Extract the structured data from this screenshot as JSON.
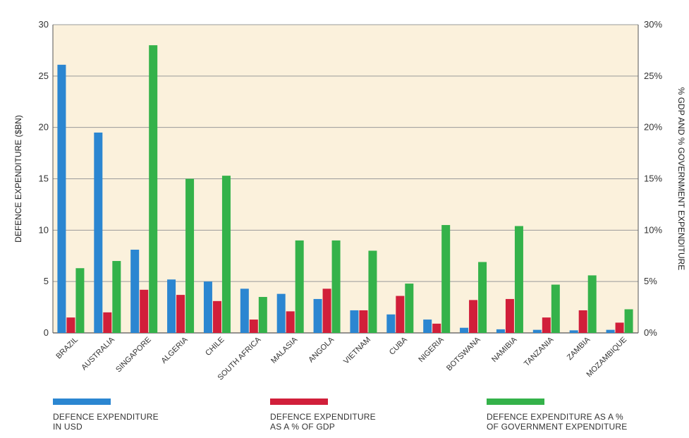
{
  "chart_data": {
    "type": "bar",
    "categories": [
      "BRAZIL",
      "AUSTRALIA",
      "SINGAPORE",
      "ALGERIA",
      "CHILE",
      "SOUTH AFRICA",
      "MALASIA",
      "ANGOLA",
      "VIETNAM",
      "CUBA",
      "NIGERIA",
      "BOTSWANA",
      "NAMIBIA",
      "TANZANIA",
      "ZAMBIA",
      "MOZAMBIQUE"
    ],
    "series": [
      {
        "name": "DEFENCE EXPENDITURE IN USD",
        "axis": "left",
        "color": "#2b86d1",
        "values": [
          26.1,
          19.5,
          8.1,
          5.2,
          5.0,
          4.3,
          3.8,
          3.3,
          2.2,
          1.8,
          1.3,
          0.5,
          0.35,
          0.3,
          0.25,
          0.3
        ]
      },
      {
        "name": "DEFENCE EXPENDITURE AS A % OF GDP",
        "axis": "right",
        "color": "#d11f3a",
        "values": [
          1.5,
          2.0,
          4.2,
          3.7,
          3.1,
          1.3,
          2.1,
          4.3,
          2.2,
          3.6,
          0.9,
          3.2,
          3.3,
          1.5,
          2.2,
          1.0
        ]
      },
      {
        "name": "DEFENCE EXPENDITURE AS A % OF GOVERNMENT EXPENDITURE",
        "axis": "right",
        "color": "#34b24a",
        "values": [
          6.3,
          7.0,
          28.0,
          15.0,
          15.3,
          3.5,
          9.0,
          9.0,
          8.0,
          4.8,
          10.5,
          6.9,
          10.4,
          4.7,
          5.6,
          2.3
        ]
      }
    ],
    "ylabel": "DEFENCE EXPENDITURE ($BN)",
    "y2label": "% GDP AND % GOVERNMENT EXPENDITURE",
    "ylim": [
      0,
      30
    ],
    "y2lim": [
      0,
      30
    ],
    "yticks": [
      "0",
      "5",
      "10",
      "15",
      "20",
      "25",
      "30"
    ],
    "y2ticks": [
      "0%",
      "5%",
      "10%",
      "15%",
      "20%",
      "25%",
      "30%"
    ],
    "grid": true,
    "legend_placement": "bottom"
  },
  "legend": {
    "items": [
      {
        "line1": "DEFENCE EXPENDITURE",
        "line2": "IN USD",
        "color": "#2b86d1"
      },
      {
        "line1": "DEFENCE EXPENDITURE",
        "line2": "AS A % OF GDP",
        "color": "#d11f3a"
      },
      {
        "line1": "DEFENCE EXPENDITURE AS A %",
        "line2": "OF GOVERNMENT EXPENDITURE",
        "color": "#34b24a"
      }
    ]
  },
  "colors": {
    "plot_background": "#fbf1dc",
    "grid": "#9a9a9a"
  }
}
